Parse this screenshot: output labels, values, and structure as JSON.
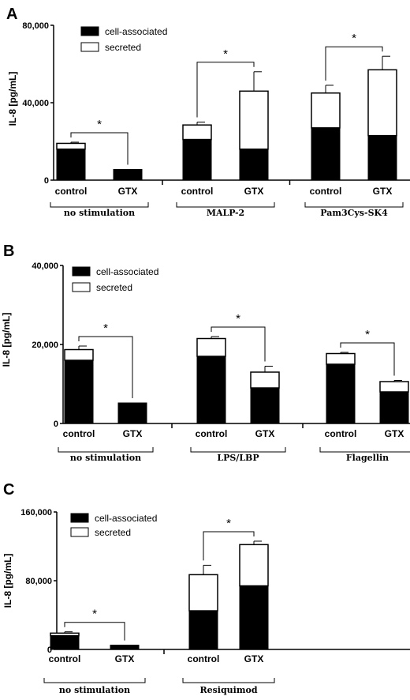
{
  "chart_data": [
    {
      "type": "bar",
      "stacked": true,
      "panel": "A",
      "ylabel": "IL-8 [pg/mL]",
      "ylim": [
        0,
        80000
      ],
      "yticks": [
        {
          "value": 0,
          "label": "0"
        },
        {
          "value": 40000,
          "label": "40,000"
        },
        {
          "value": 80000,
          "label": "80,000"
        }
      ],
      "legend_position": "top-left",
      "legend": [
        "cell-associated",
        "secreted"
      ],
      "groups": [
        {
          "label": "no stimulation",
          "bars": [
            {
              "label": "control",
              "cell": 16000,
              "secreted": 3000,
              "err": 600,
              "sig": true
            },
            {
              "label": "GTX",
              "cell": 5500,
              "secreted": 0,
              "err": 0
            }
          ]
        },
        {
          "label": "MALP-2",
          "bars": [
            {
              "label": "control",
              "cell": 21000,
              "secreted": 7500,
              "err": 1500,
              "sig": true
            },
            {
              "label": "GTX",
              "cell": 16000,
              "secreted": 30000,
              "err": 10000
            }
          ]
        },
        {
          "label": "Pam3Cys-SK4",
          "bars": [
            {
              "label": "control",
              "cell": 27000,
              "secreted": 18000,
              "err": 4000,
              "sig": true
            },
            {
              "label": "GTX",
              "cell": 23000,
              "secreted": 34000,
              "err": 7000
            }
          ]
        }
      ]
    },
    {
      "type": "bar",
      "stacked": true,
      "panel": "B",
      "ylabel": "IL-8 [pg/mL]",
      "ylim": [
        0,
        40000
      ],
      "yticks": [
        {
          "value": 0,
          "label": "0"
        },
        {
          "value": 20000,
          "label": "20,000"
        },
        {
          "value": 40000,
          "label": "40,000"
        }
      ],
      "legend_position": "top-left",
      "legend": [
        "cell-associated",
        "secreted"
      ],
      "groups": [
        {
          "label": "no stimulation",
          "bars": [
            {
              "label": "control",
              "cell": 16000,
              "secreted": 2700,
              "err": 900,
              "sig": true
            },
            {
              "label": "GTX",
              "cell": 5200,
              "secreted": 0,
              "err": 0
            }
          ]
        },
        {
          "label": "LPS/LBP",
          "bars": [
            {
              "label": "control",
              "cell": 17000,
              "secreted": 4500,
              "err": 500,
              "sig": true
            },
            {
              "label": "GTX",
              "cell": 9000,
              "secreted": 4000,
              "err": 1500
            }
          ]
        },
        {
          "label": "Flagellin",
          "bars": [
            {
              "label": "control",
              "cell": 15000,
              "secreted": 2700,
              "err": 300,
              "sig": true
            },
            {
              "label": "GTX",
              "cell": 8000,
              "secreted": 2600,
              "err": 300
            }
          ]
        }
      ]
    },
    {
      "type": "bar",
      "stacked": true,
      "panel": "C",
      "ylabel": "IL-8 [pg/mL]",
      "ylim": [
        0,
        160000
      ],
      "yticks": [
        {
          "value": 0,
          "label": "0"
        },
        {
          "value": 80000,
          "label": "80,000"
        },
        {
          "value": 160000,
          "label": "160,000"
        }
      ],
      "legend_position": "top-left",
      "legend": [
        "cell-associated",
        "secreted"
      ],
      "groups": [
        {
          "label": "no stimulation",
          "bars": [
            {
              "label": "control",
              "cell": 16000,
              "secreted": 3000,
              "err": 1500,
              "sig": true
            },
            {
              "label": "GTX",
              "cell": 5000,
              "secreted": 0,
              "err": 0
            }
          ]
        },
        {
          "label": "Resiquimod",
          "bars": [
            {
              "label": "control",
              "cell": 45000,
              "secreted": 42000,
              "err": 11000,
              "sig": true
            },
            {
              "label": "GTX",
              "cell": 74000,
              "secreted": 48000,
              "err": 4000
            }
          ]
        }
      ]
    }
  ]
}
